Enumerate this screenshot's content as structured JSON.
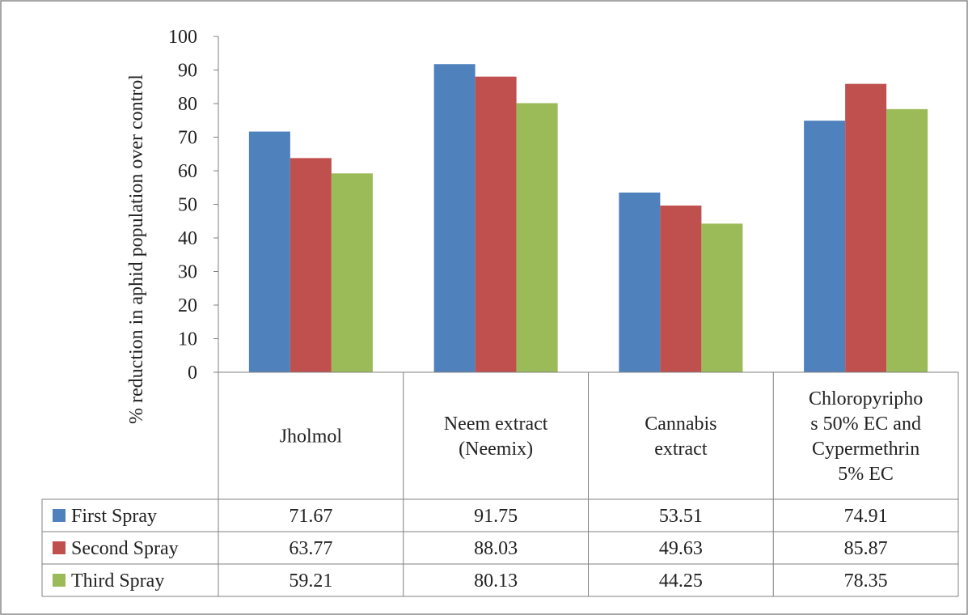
{
  "chart_data": {
    "type": "bar",
    "title": "",
    "xlabel": "",
    "ylabel": "% reduction in aphid population over control",
    "ylim": [
      0,
      100
    ],
    "yticks": [
      0,
      10,
      20,
      30,
      40,
      50,
      60,
      70,
      80,
      90,
      100
    ],
    "grid": false,
    "legend": "data-table-left",
    "categories": [
      [
        "Jholmol"
      ],
      [
        "Neem extract",
        "(Neemix)"
      ],
      [
        "Cannabis",
        "extract"
      ],
      [
        "Chloropyripho",
        "s 50% EC and",
        "Cypermethrin",
        "5%  EC"
      ]
    ],
    "series": [
      {
        "name": "First Spray",
        "color": "#4F81BD",
        "values": [
          71.67,
          91.75,
          53.51,
          74.91
        ]
      },
      {
        "name": "Second Spray",
        "color": "#C0504D",
        "values": [
          63.77,
          88.03,
          49.63,
          85.87
        ]
      },
      {
        "name": "Third Spray",
        "color": "#9BBB59",
        "values": [
          59.21,
          80.13,
          44.25,
          78.35
        ]
      }
    ]
  }
}
